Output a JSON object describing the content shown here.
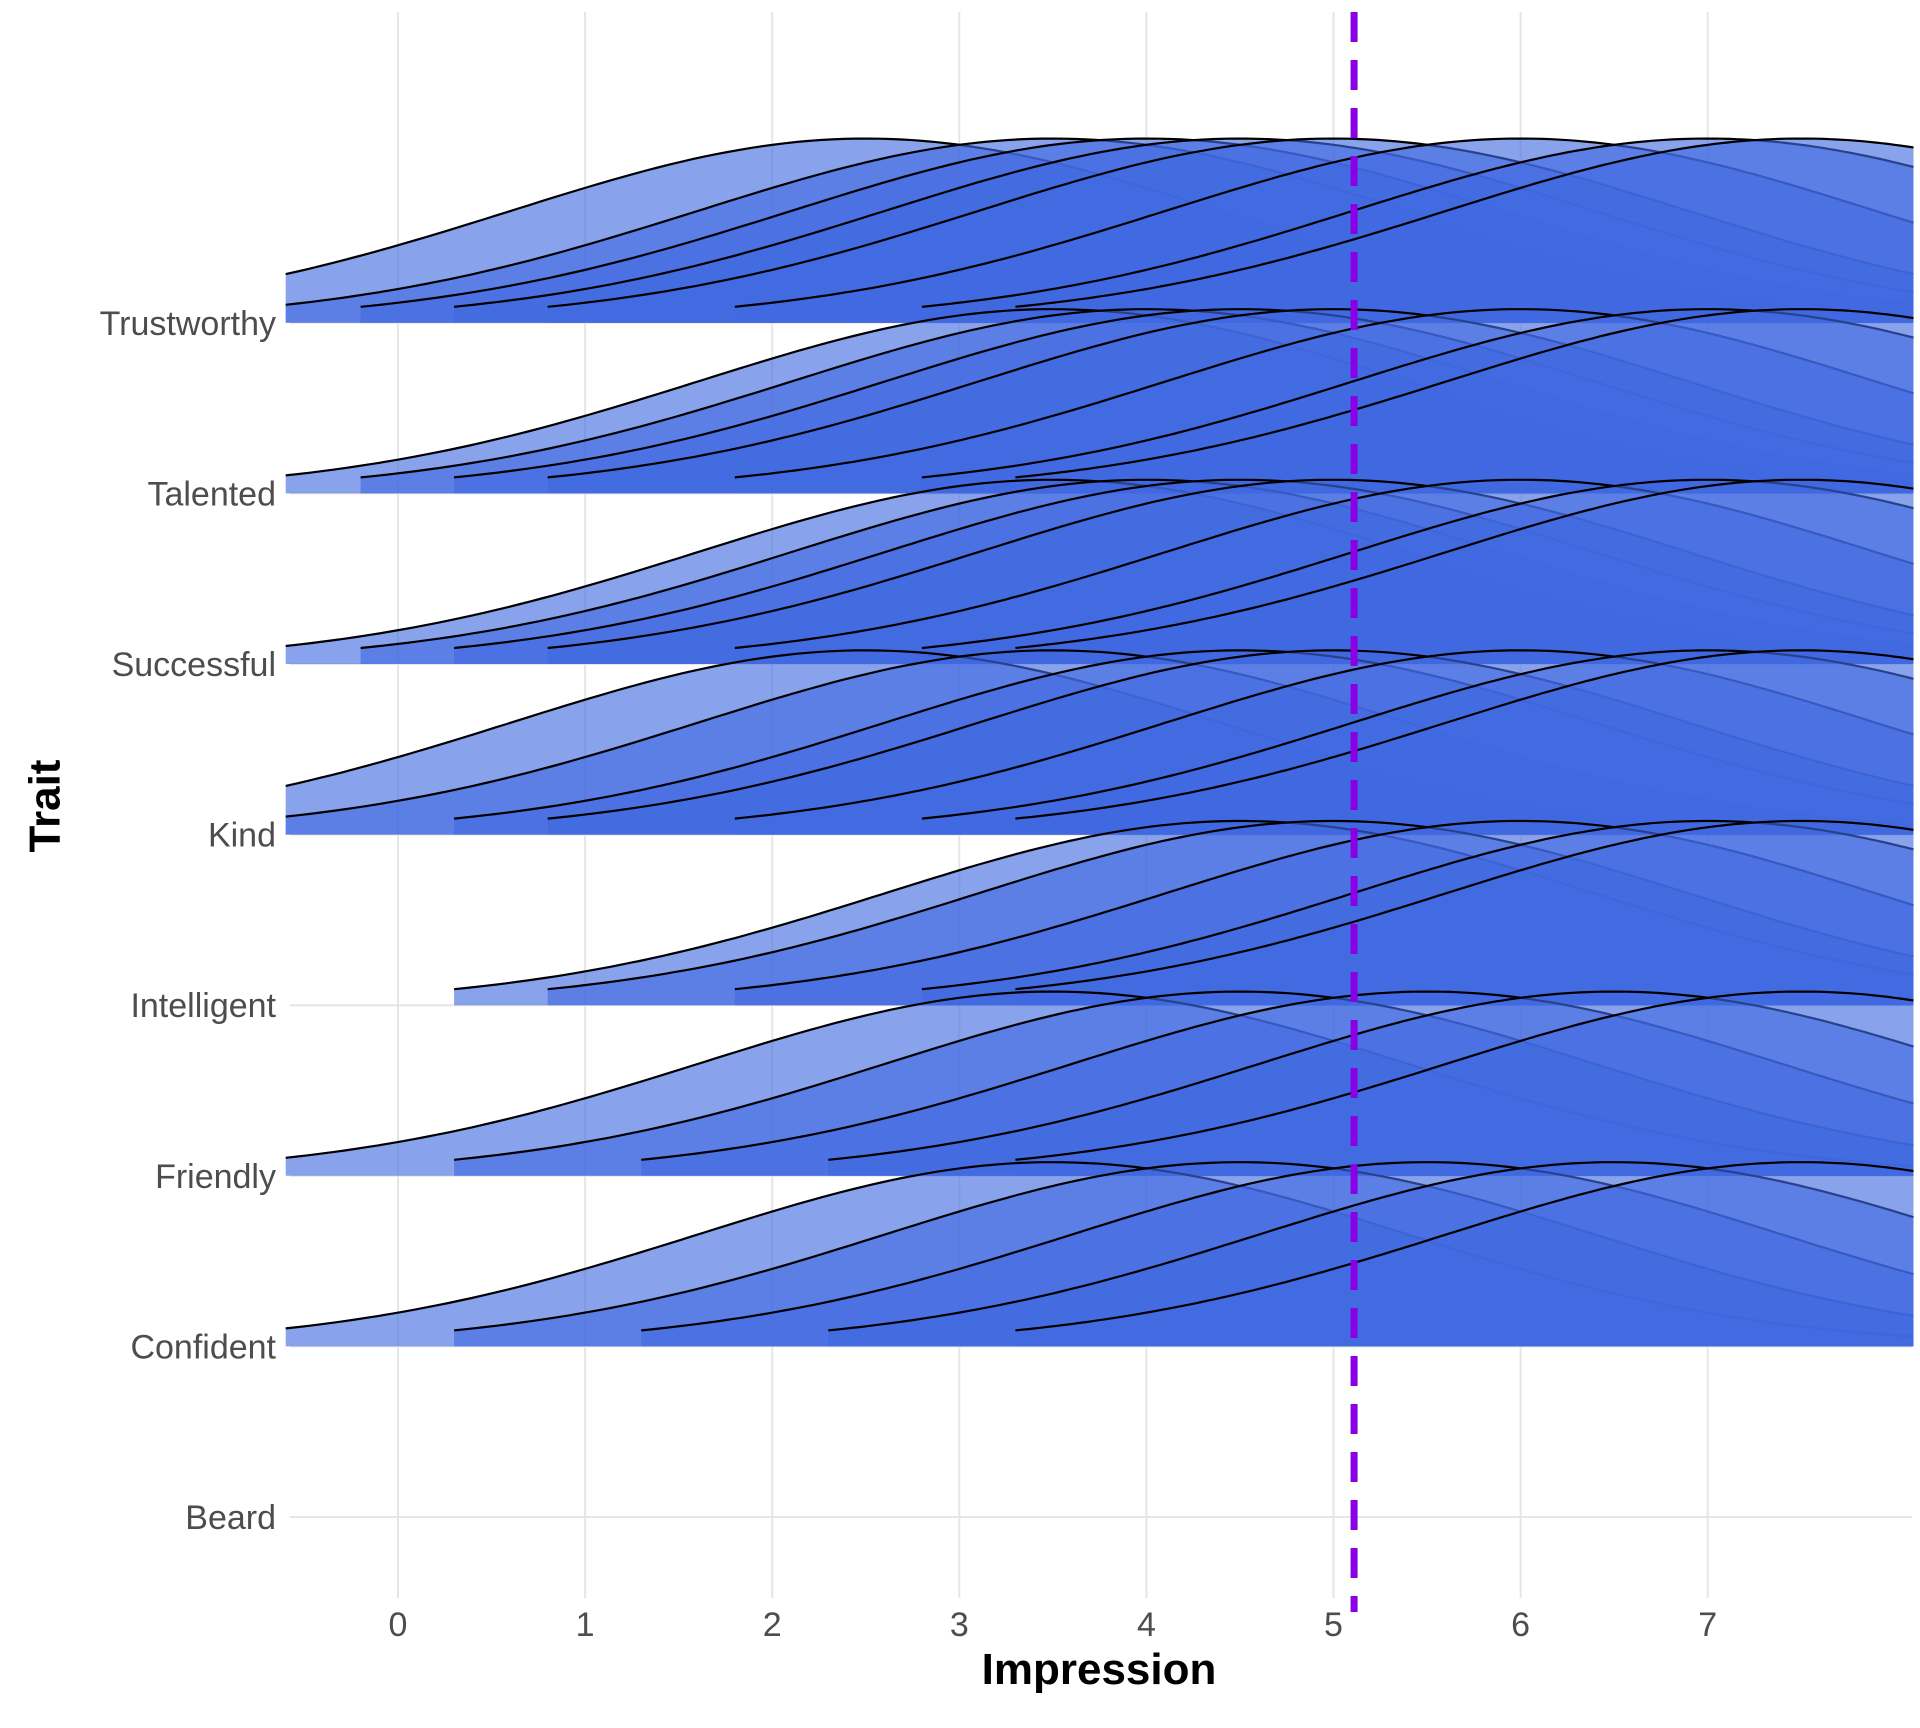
{
  "chart_data": {
    "type": "ridgeline",
    "xlabel": "Impression",
    "ylabel": "Trait",
    "x_ticks": [
      0,
      1,
      2,
      3,
      4,
      5,
      6,
      7
    ],
    "xlim": [
      -0.6,
      8.1
    ],
    "categories": [
      "Beard",
      "Confident",
      "Friendly",
      "Intelligent",
      "Kind",
      "Successful",
      "Talented",
      "Trustworthy"
    ],
    "ridges": [
      {
        "trait": "Confident",
        "peaks": [
          3.5,
          4.5,
          5.5,
          6.5,
          7.5
        ]
      },
      {
        "trait": "Friendly",
        "peaks": [
          3.5,
          4.5,
          5.5,
          6.5,
          7.5
        ]
      },
      {
        "trait": "Intelligent",
        "peaks": [
          4.5,
          5.0,
          6.0,
          7.0,
          7.5
        ]
      },
      {
        "trait": "Kind",
        "peaks": [
          2.5,
          3.5,
          4.5,
          5.0,
          6.0,
          7.0,
          7.5
        ]
      },
      {
        "trait": "Successful",
        "peaks": [
          3.5,
          4.0,
          4.5,
          5.0,
          6.0,
          7.0,
          7.5
        ]
      },
      {
        "trait": "Talented",
        "peaks": [
          3.5,
          4.0,
          4.5,
          5.0,
          6.0,
          7.0,
          7.5
        ]
      },
      {
        "trait": "Trustworthy",
        "peaks": [
          2.5,
          3.5,
          4.0,
          4.5,
          5.0,
          6.0,
          7.0,
          7.5
        ]
      }
    ],
    "ridge_sd": 1.9,
    "ridge_scale": 1.08,
    "reference_line": {
      "x": 5.11,
      "style": "dashed",
      "color": "#8a00e6"
    },
    "fill_color": "#4169e1",
    "fill_opacity": 0.62,
    "outline_color": "#000000",
    "grid": true,
    "legend": "none"
  }
}
